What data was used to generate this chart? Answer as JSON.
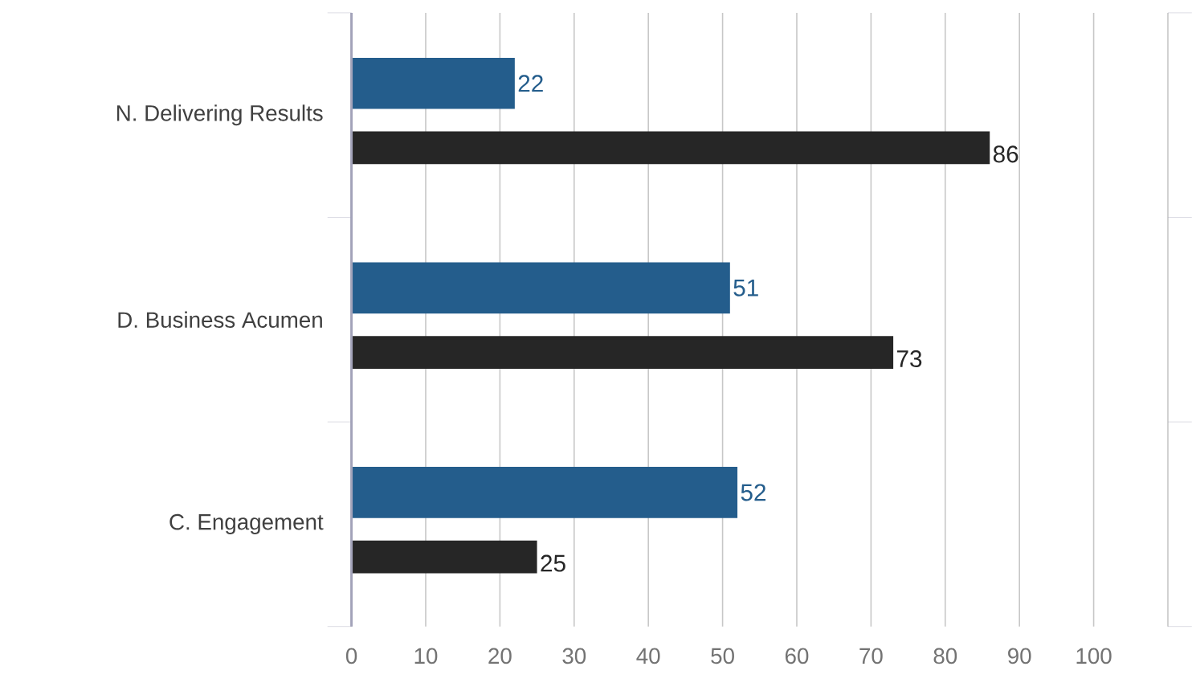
{
  "chart_data": {
    "type": "bar",
    "orientation": "horizontal",
    "categories": [
      "N. Delivering Results",
      "D. Business Acumen",
      "C. Engagement"
    ],
    "series": [
      {
        "color": "#245d8c",
        "values": [
          22,
          51,
          52
        ]
      },
      {
        "color": "#262626",
        "values": [
          86,
          73,
          25
        ]
      }
    ],
    "xlim": [
      0,
      110
    ],
    "xticks": [
      0,
      10,
      20,
      30,
      40,
      50,
      60,
      70,
      80,
      90,
      100,
      {
        "value": 110,
        "label": null
      }
    ],
    "grid": "x",
    "data_labels": true
  }
}
